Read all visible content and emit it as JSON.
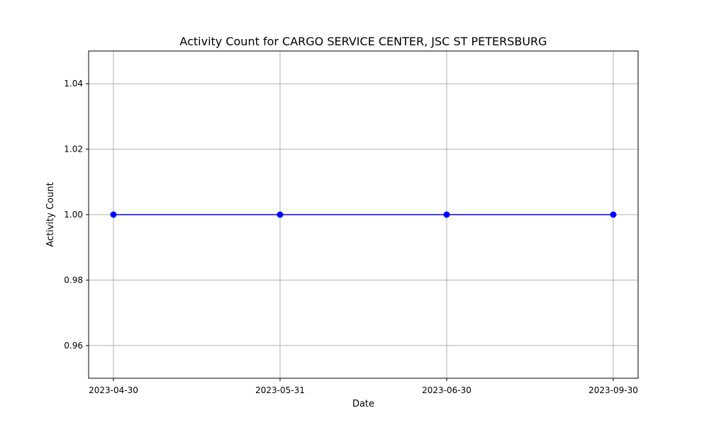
{
  "chart_data": {
    "type": "line",
    "title": "Activity Count for CARGO SERVICE CENTER, JSC ST PETERSBURG",
    "xlabel": "Date",
    "ylabel": "Activity Count",
    "categories": [
      "2023-04-30",
      "2023-05-31",
      "2023-06-30",
      "2023-09-30"
    ],
    "series": [
      {
        "values": [
          1,
          1,
          1,
          1
        ],
        "color": "#0000ff",
        "marker": "circle"
      }
    ],
    "ylim": [
      0.95,
      1.05
    ],
    "yticks": [
      0.96,
      0.98,
      1.0,
      1.02,
      1.04
    ],
    "ytick_labels": [
      "0.96",
      "0.98",
      "1.00",
      "1.02",
      "1.04"
    ],
    "grid": true
  }
}
